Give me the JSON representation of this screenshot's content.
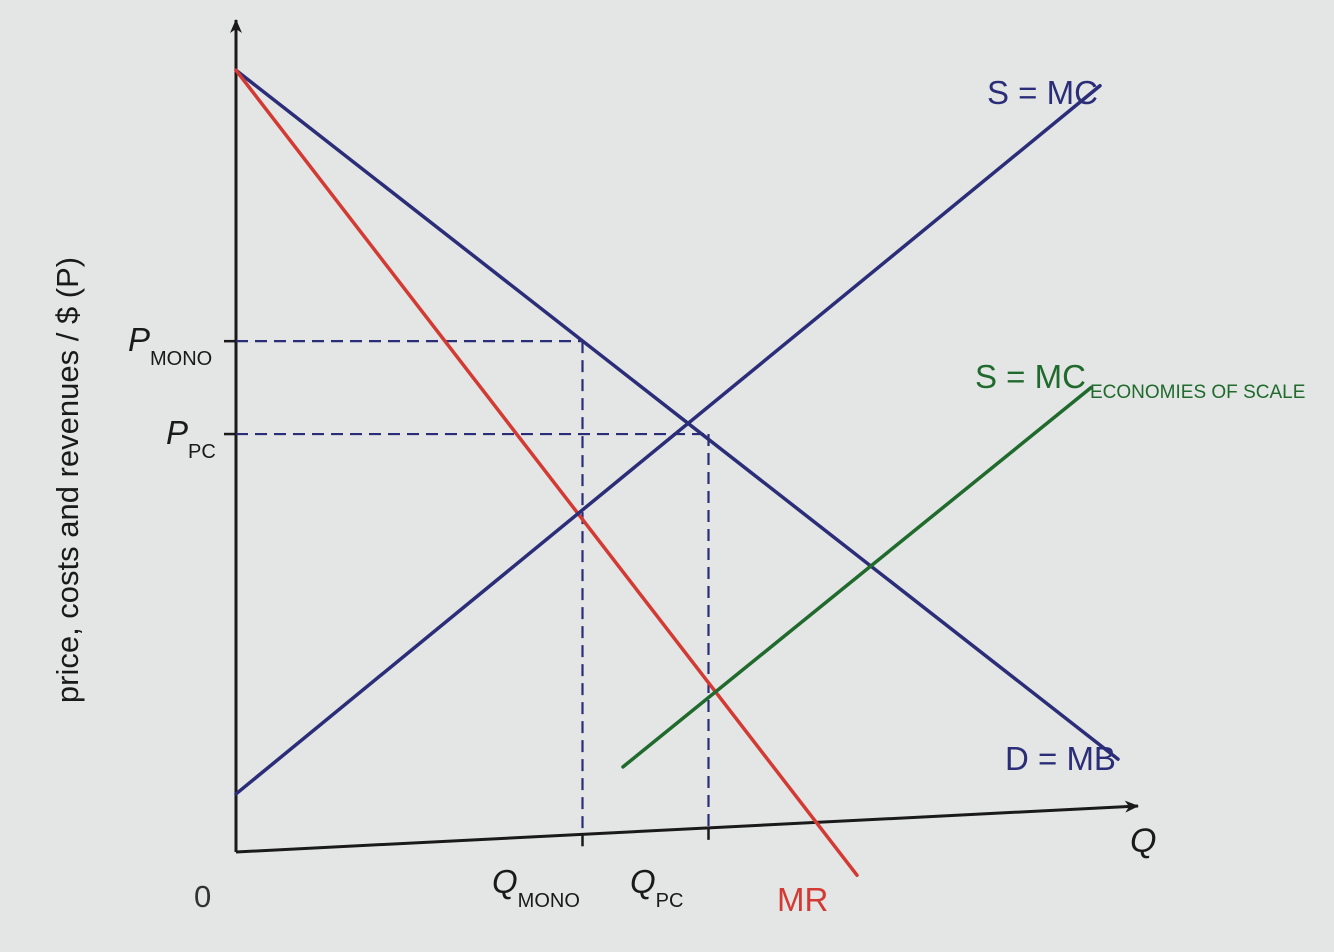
{
  "chart_data": {
    "type": "line",
    "title": "",
    "xlabel": "Q",
    "ylabel": "price, costs and revenues / $ (P)",
    "origin_label": "0",
    "xlim": [
      0,
      10
    ],
    "ylim": [
      0,
      10
    ],
    "colors": {
      "axis": "#1a1a1a",
      "navy": "#2b2d78",
      "red": "#d33a34",
      "green": "#1f6a2c",
      "dashed": "#2b2d78"
    },
    "series": [
      {
        "name": "D = MB",
        "color": "#2b2d78",
        "x": [
          0,
          9.8
        ],
        "y": [
          10.1,
          1.2
        ]
      },
      {
        "name": "MR",
        "color": "#d33a34",
        "x": [
          0,
          6.9
        ],
        "y": [
          10.1,
          -0.3
        ]
      },
      {
        "name": "S = MC",
        "color": "#2b2d78",
        "x": [
          0,
          9.6
        ],
        "y": [
          0.75,
          9.9
        ]
      },
      {
        "name": "S = MCECONOMIES OF SCALE",
        "color": "#1f6a2c",
        "x": [
          4.3,
          9.5
        ],
        "y": [
          1.1,
          6.0
        ]
      }
    ],
    "series_labels": {
      "d_mb": "D = MB",
      "mr": "MR",
      "s_mc": "S = MC",
      "s_mc_eos_main": "S = MC",
      "s_mc_eos_sub": "ECONOMIES OF SCALE"
    },
    "price_levels": [
      {
        "main": "P",
        "sub": "MONO",
        "value": 6.6
      },
      {
        "main": "P",
        "sub": "PC",
        "value": 5.4
      }
    ],
    "quantity_levels": [
      {
        "main": "Q",
        "sub": "MONO",
        "value": 3.85
      },
      {
        "main": "Q",
        "sub": "PC",
        "value": 5.25
      }
    ],
    "intersections": [
      {
        "x": 3.85,
        "y": 4.2
      },
      {
        "x": 7.2,
        "y": 3.9
      },
      {
        "x": 5.25,
        "y": 2.1
      }
    ]
  }
}
